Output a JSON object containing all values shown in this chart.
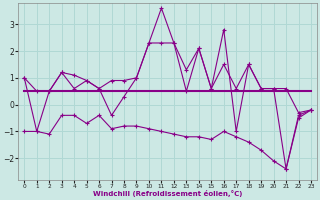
{
  "xlabel": "Windchill (Refroidissement éolien,°C)",
  "background_color": "#cce8e4",
  "line_color": "#880088",
  "grid_color": "#b0d8d4",
  "xlim": [
    -0.5,
    23.5
  ],
  "ylim": [
    -2.8,
    3.8
  ],
  "yticks": [
    -2,
    -1,
    0,
    1,
    2,
    3
  ],
  "xticks": [
    0,
    1,
    2,
    3,
    4,
    5,
    6,
    7,
    8,
    9,
    10,
    11,
    12,
    13,
    14,
    15,
    16,
    17,
    18,
    19,
    20,
    21,
    22,
    23
  ],
  "series_main": [
    1.0,
    -1.0,
    0.5,
    1.2,
    1.1,
    0.9,
    0.6,
    -0.4,
    0.3,
    1.0,
    2.3,
    3.6,
    2.3,
    0.5,
    2.1,
    0.6,
    2.8,
    -1.0,
    1.5,
    0.6,
    0.6,
    -2.4,
    -0.5,
    -0.2
  ],
  "series_flat": [
    0.5,
    0.5,
    0.5,
    0.5,
    0.5,
    0.5,
    0.5,
    0.5,
    0.5,
    0.5,
    0.5,
    0.5,
    0.5,
    0.5,
    0.5,
    0.5,
    0.5,
    0.5,
    0.5,
    0.5,
    0.5,
    0.5,
    0.5,
    0.5
  ],
  "series_upper": [
    1.0,
    0.5,
    0.5,
    1.2,
    0.6,
    0.9,
    0.6,
    0.9,
    0.9,
    1.0,
    2.3,
    2.3,
    2.3,
    1.3,
    2.1,
    0.6,
    1.5,
    0.6,
    1.5,
    0.6,
    0.6,
    0.6,
    -0.3,
    -0.2
  ],
  "series_lower": [
    -1.0,
    -1.0,
    -1.1,
    -0.4,
    -0.4,
    -0.7,
    -0.4,
    -0.9,
    -0.8,
    -0.8,
    -0.9,
    -1.0,
    -1.1,
    -1.2,
    -1.2,
    -1.3,
    -1.0,
    -1.2,
    -1.4,
    -1.7,
    -2.1,
    -2.4,
    -0.4,
    -0.2
  ]
}
